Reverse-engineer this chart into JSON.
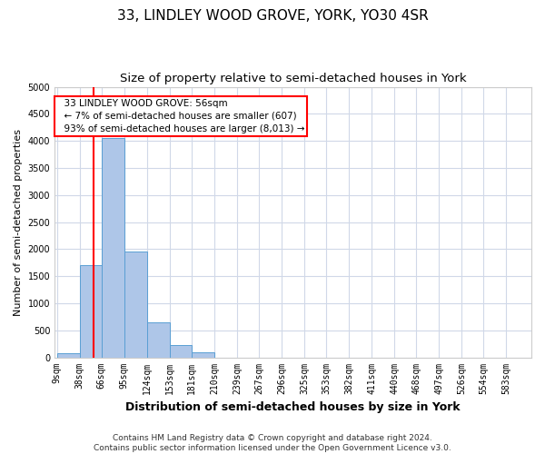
{
  "title": "33, LINDLEY WOOD GROVE, YORK, YO30 4SR",
  "subtitle": "Size of property relative to semi-detached houses in York",
  "xlabel": "Distribution of semi-detached houses by size in York",
  "ylabel": "Number of semi-detached properties",
  "property_label": "33 LINDLEY WOOD GROVE: 56sqm",
  "pct_smaller": 7,
  "count_smaller": 607,
  "pct_larger": 93,
  "count_larger": 8013,
  "bin_labels": [
    "9sqm",
    "38sqm",
    "66sqm",
    "95sqm",
    "124sqm",
    "153sqm",
    "181sqm",
    "210sqm",
    "239sqm",
    "267sqm",
    "296sqm",
    "325sqm",
    "353sqm",
    "382sqm",
    "411sqm",
    "440sqm",
    "468sqm",
    "497sqm",
    "526sqm",
    "554sqm",
    "583sqm"
  ],
  "bin_edges": [
    9,
    38,
    66,
    95,
    124,
    153,
    181,
    210,
    239,
    267,
    296,
    325,
    353,
    382,
    411,
    440,
    468,
    497,
    526,
    554,
    583,
    612
  ],
  "bar_values": [
    75,
    1700,
    4050,
    1950,
    650,
    230,
    100,
    0,
    0,
    0,
    0,
    0,
    0,
    0,
    0,
    0,
    0,
    0,
    0,
    0,
    0
  ],
  "bar_color": "#aec6e8",
  "bar_edge_color": "#5a9fd4",
  "vline_x": 56,
  "vline_color": "red",
  "ylim": [
    0,
    5000
  ],
  "yticks": [
    0,
    500,
    1000,
    1500,
    2000,
    2500,
    3000,
    3500,
    4000,
    4500,
    5000
  ],
  "grid_color": "#d0d8e8",
  "footer": "Contains HM Land Registry data © Crown copyright and database right 2024.\nContains public sector information licensed under the Open Government Licence v3.0.",
  "title_fontsize": 11,
  "subtitle_fontsize": 9.5,
  "ylabel_fontsize": 8,
  "xlabel_fontsize": 9,
  "tick_fontsize": 7,
  "footer_fontsize": 6.5,
  "ann_fontsize": 7.5
}
